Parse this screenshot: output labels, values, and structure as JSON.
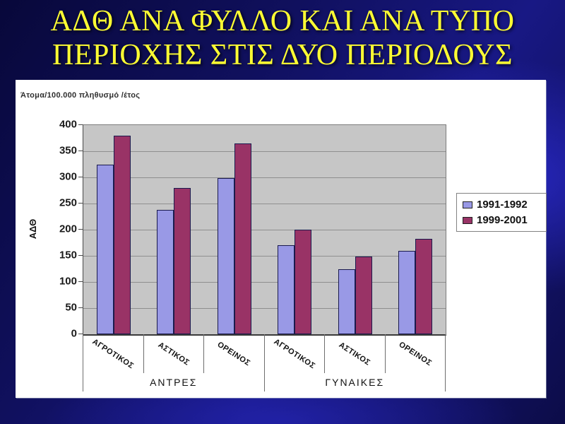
{
  "title": {
    "line1": "ΑΔΘ ΑΝΑ ΦΥΛΛΟ ΚΑΙ ΑΝΑ ΤΥΠΟ",
    "line2": "ΠΕΡΙΟΧΗΣ ΣΤΙΣ ΔΥΟ ΠΕΡΙΟΔΟΥΣ",
    "color": "#ffff33"
  },
  "chart_data": {
    "type": "bar",
    "units_label": "Άτομα/100.000 πληθυσμό /έτος",
    "ylabel": "ΑΔΘ",
    "ylim": [
      0,
      400
    ],
    "y_ticks": [
      400,
      350,
      300,
      250,
      200,
      150,
      100,
      50,
      0
    ],
    "grid": true,
    "plot_bg_color": "#c6c6c6",
    "groups": [
      {
        "label": "ΑΝΤΡΕΣ",
        "categories": [
          "ΑΓΡΟΤΙΚΟΣ",
          "ΑΣΤΙΚΟΣ",
          "ΟΡΕΙΝΟΣ"
        ]
      },
      {
        "label": "ΓΥΝΑΙΚΕΣ",
        "categories": [
          "ΑΓΡΟΤΙΚΟΣ",
          "ΑΣΤΙΚΟΣ",
          "ΟΡΕΙΝΟΣ"
        ]
      }
    ],
    "series": [
      {
        "name": "1991-1992",
        "color": "#9999e6",
        "values": [
          325,
          238,
          298,
          170,
          125,
          160
        ]
      },
      {
        "name": "1999-2001",
        "color": "#993366",
        "values": [
          380,
          280,
          365,
          200,
          148,
          182
        ]
      }
    ],
    "legend_position": "right"
  }
}
